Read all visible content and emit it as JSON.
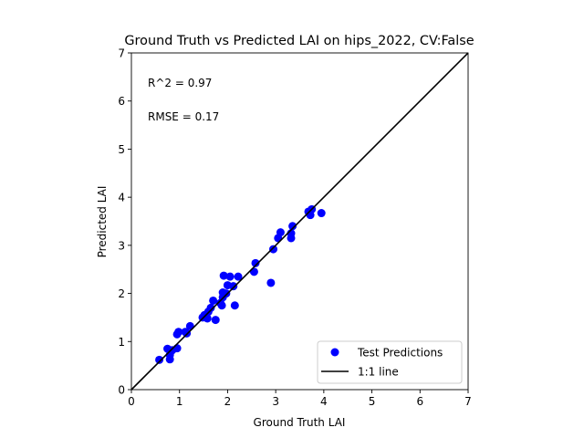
{
  "chart_data": {
    "type": "scatter",
    "title": "Ground Truth vs Predicted LAI on hips_2022, CV:False",
    "xlabel": "Ground Truth LAI",
    "ylabel": "Predicted LAI",
    "xlim": [
      0,
      7
    ],
    "ylim": [
      0,
      7
    ],
    "xticks": [
      "0",
      "1",
      "2",
      "3",
      "4",
      "5",
      "6",
      "7"
    ],
    "yticks": [
      "0",
      "1",
      "2",
      "3",
      "4",
      "5",
      "6",
      "7"
    ],
    "grid": false,
    "legend_position": "lower-right",
    "annotations": [
      "R^2 = 0.97",
      "RMSE = 0.17"
    ],
    "colors": {
      "points": "#0000ff",
      "reference_line": "#000000"
    },
    "series": [
      {
        "name": "Test Predictions",
        "points": [
          [
            0.58,
            0.62
          ],
          [
            0.75,
            0.85
          ],
          [
            0.8,
            0.72
          ],
          [
            0.8,
            0.63
          ],
          [
            0.85,
            0.82
          ],
          [
            0.95,
            0.86
          ],
          [
            0.95,
            1.15
          ],
          [
            0.98,
            1.2
          ],
          [
            1.12,
            1.2
          ],
          [
            1.15,
            1.17
          ],
          [
            1.22,
            1.32
          ],
          [
            1.48,
            1.5
          ],
          [
            1.52,
            1.55
          ],
          [
            1.58,
            1.48
          ],
          [
            1.6,
            1.62
          ],
          [
            1.65,
            1.7
          ],
          [
            1.7,
            1.85
          ],
          [
            1.75,
            1.45
          ],
          [
            1.85,
            1.8
          ],
          [
            1.88,
            1.75
          ],
          [
            1.9,
            1.92
          ],
          [
            1.9,
            2.02
          ],
          [
            1.92,
            2.37
          ],
          [
            1.97,
            2.0
          ],
          [
            2.0,
            2.17
          ],
          [
            2.05,
            2.35
          ],
          [
            2.12,
            2.15
          ],
          [
            2.15,
            1.75
          ],
          [
            2.22,
            2.35
          ],
          [
            2.55,
            2.45
          ],
          [
            2.58,
            2.63
          ],
          [
            2.9,
            2.22
          ],
          [
            2.95,
            2.92
          ],
          [
            3.05,
            3.15
          ],
          [
            3.1,
            3.27
          ],
          [
            3.32,
            3.15
          ],
          [
            3.32,
            3.25
          ],
          [
            3.35,
            3.4
          ],
          [
            3.68,
            3.7
          ],
          [
            3.7,
            3.67
          ],
          [
            3.72,
            3.63
          ],
          [
            3.75,
            3.75
          ],
          [
            3.95,
            3.67
          ]
        ]
      },
      {
        "name": "1:1 line",
        "points": [
          [
            0,
            0
          ],
          [
            7,
            7
          ]
        ]
      }
    ]
  }
}
